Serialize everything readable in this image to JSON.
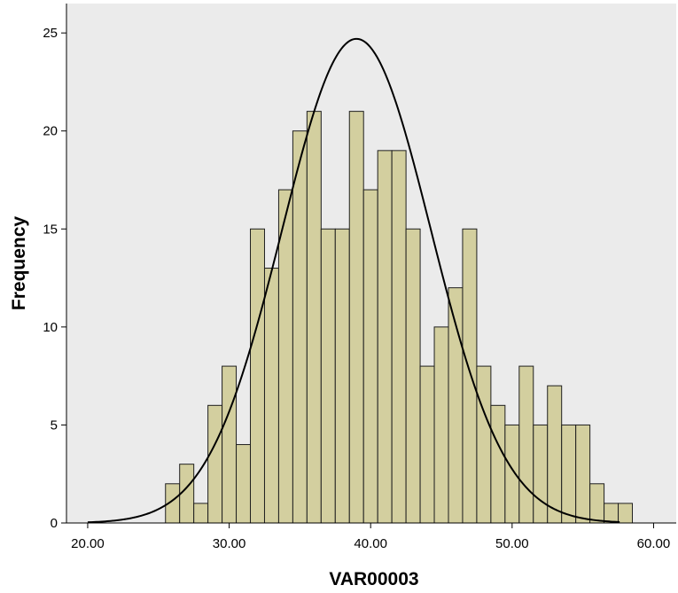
{
  "chart_data": {
    "type": "bar",
    "title": "",
    "xlabel": "VAR00003",
    "ylabel": "Frequency",
    "xlim": [
      18.5,
      61.6
    ],
    "ylim": [
      0,
      26.5
    ],
    "x_ticks": [
      {
        "value": 20,
        "label": "20.00"
      },
      {
        "value": 30,
        "label": "30.00"
      },
      {
        "value": 40,
        "label": "40.00"
      },
      {
        "value": 50,
        "label": "50.00"
      },
      {
        "value": 60,
        "label": "60.00"
      }
    ],
    "y_ticks": [
      {
        "value": 0,
        "label": "0"
      },
      {
        "value": 5,
        "label": "5"
      },
      {
        "value": 10,
        "label": "10"
      },
      {
        "value": 15,
        "label": "15"
      },
      {
        "value": 20,
        "label": "20"
      },
      {
        "value": 25,
        "label": "25"
      }
    ],
    "bins": {
      "start": 25.5,
      "width": 1.0,
      "counts": [
        2,
        3,
        1,
        6,
        8,
        4,
        15,
        13,
        17,
        20,
        21,
        15,
        15,
        21,
        17,
        19,
        19,
        15,
        8,
        10,
        12,
        15,
        8,
        6,
        5,
        8,
        5,
        7,
        5,
        5,
        2,
        1,
        1
      ]
    },
    "normal_curve": {
      "mean": 39.0,
      "sd": 5.25,
      "peak": 24.7
    },
    "grid": false,
    "legend": "none",
    "colors": {
      "plot_background": "#ebebeb",
      "bar_fill": "#d3cf9f",
      "bar_stroke": "#1f1f1f",
      "curve": "#000000"
    }
  }
}
